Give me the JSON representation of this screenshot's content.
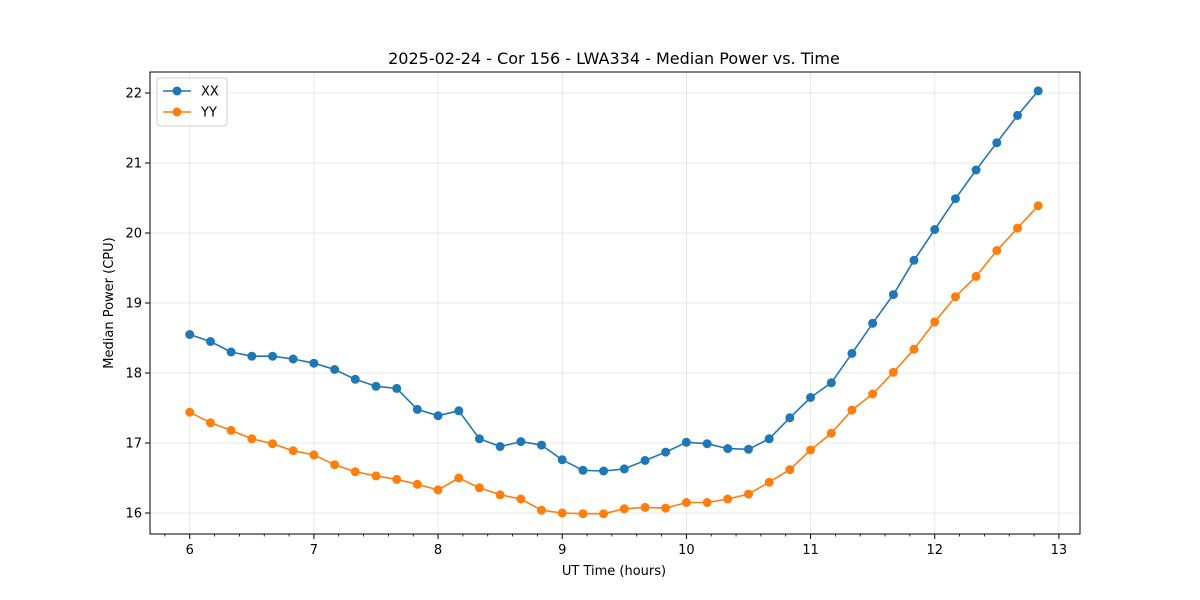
{
  "chart_data": {
    "type": "line",
    "title": "2025-02-24 - Cor 156 - LWA334 - Median Power vs. Time",
    "xlabel": "UT Time (hours)",
    "ylabel": "Median Power (CPU)",
    "xlim": [
      5.68,
      13.17
    ],
    "ylim": [
      15.7,
      22.3
    ],
    "xticks": [
      6,
      7,
      8,
      9,
      10,
      11,
      12,
      13
    ],
    "yticks": [
      16,
      17,
      18,
      19,
      20,
      21,
      22
    ],
    "x_minor_step": 0.2,
    "grid": true,
    "legend_position": "top-left",
    "x": [
      6.0,
      6.167,
      6.333,
      6.5,
      6.667,
      6.833,
      7.0,
      7.167,
      7.333,
      7.5,
      7.667,
      7.833,
      8.0,
      8.167,
      8.333,
      8.5,
      8.667,
      8.833,
      9.0,
      9.167,
      9.333,
      9.5,
      9.667,
      9.833,
      10.0,
      10.167,
      10.333,
      10.5,
      10.667,
      10.833,
      11.0,
      11.167,
      11.333,
      11.5,
      11.667,
      11.833,
      12.0,
      12.167,
      12.333,
      12.5,
      12.667,
      12.833
    ],
    "series": [
      {
        "name": "XX",
        "color": "#1f77b4",
        "values": [
          18.55,
          18.45,
          18.3,
          18.24,
          18.24,
          18.2,
          18.14,
          18.05,
          17.91,
          17.81,
          17.78,
          17.48,
          17.39,
          17.46,
          17.06,
          16.95,
          17.02,
          16.97,
          16.76,
          16.61,
          16.6,
          16.63,
          16.75,
          16.87,
          17.01,
          16.99,
          16.92,
          16.91,
          17.06,
          17.36,
          17.65,
          17.86,
          18.28,
          18.71,
          19.12,
          19.61,
          20.05,
          20.49,
          20.9,
          21.29,
          21.68,
          22.03
        ]
      },
      {
        "name": "YY",
        "color": "#ff7f0e",
        "values": [
          17.44,
          17.29,
          17.18,
          17.06,
          16.99,
          16.89,
          16.83,
          16.69,
          16.59,
          16.53,
          16.48,
          16.41,
          16.33,
          16.5,
          16.36,
          16.26,
          16.2,
          16.04,
          16.0,
          15.99,
          15.99,
          16.06,
          16.08,
          16.07,
          16.15,
          16.15,
          16.2,
          16.27,
          16.44,
          16.62,
          16.9,
          17.14,
          17.47,
          17.7,
          18.01,
          18.34,
          18.73,
          19.09,
          19.38,
          19.75,
          20.07,
          20.39
        ]
      }
    ]
  }
}
